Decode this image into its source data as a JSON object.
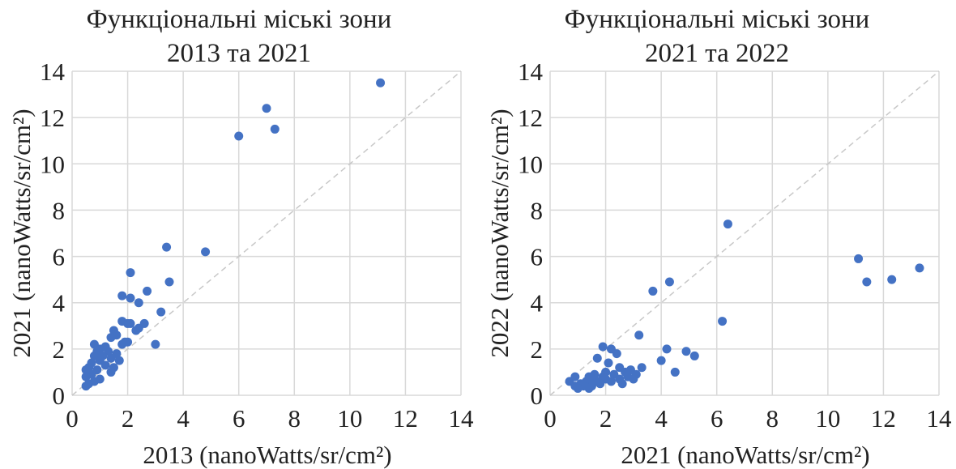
{
  "chart_data": [
    {
      "type": "scatter",
      "title_lines": [
        "Функціональні міські зони",
        "2013 та 2021"
      ],
      "xlabel": "2013 (nanoWatts/sr/cm²)",
      "ylabel": "2021 (nanoWatts/sr/cm²)",
      "xlim": [
        0,
        14
      ],
      "ylim": [
        0,
        14
      ],
      "xticks": [
        "0",
        "2",
        "4",
        "6",
        "8",
        "10",
        "12",
        "14"
      ],
      "yticks": [
        "0",
        "2",
        "4",
        "6",
        "8",
        "10",
        "12",
        "14"
      ],
      "grid": true,
      "reference_line": "y=x",
      "colors": {
        "points": "#4472c4",
        "grid": "#d9d9d9",
        "reference": "#c8c8c8"
      },
      "points": [
        [
          11.1,
          13.5
        ],
        [
          7.0,
          12.4
        ],
        [
          7.3,
          11.5
        ],
        [
          6.0,
          11.2
        ],
        [
          3.4,
          6.4
        ],
        [
          4.8,
          6.2
        ],
        [
          2.1,
          5.3
        ],
        [
          3.5,
          4.9
        ],
        [
          2.7,
          4.5
        ],
        [
          1.8,
          4.3
        ],
        [
          2.1,
          4.2
        ],
        [
          2.4,
          4.0
        ],
        [
          3.2,
          3.6
        ],
        [
          1.8,
          3.2
        ],
        [
          2.0,
          3.1
        ],
        [
          2.1,
          3.1
        ],
        [
          2.6,
          3.1
        ],
        [
          2.3,
          2.8
        ],
        [
          2.4,
          2.9
        ],
        [
          1.5,
          2.8
        ],
        [
          1.6,
          2.6
        ],
        [
          1.4,
          2.5
        ],
        [
          1.9,
          2.3
        ],
        [
          2.0,
          2.3
        ],
        [
          1.8,
          2.2
        ],
        [
          3.0,
          2.2
        ],
        [
          0.8,
          2.2
        ],
        [
          1.2,
          2.1
        ],
        [
          1.0,
          2.0
        ],
        [
          0.9,
          1.9
        ],
        [
          1.3,
          1.9
        ],
        [
          1.6,
          1.8
        ],
        [
          1.1,
          1.7
        ],
        [
          0.8,
          1.7
        ],
        [
          1.4,
          1.6
        ],
        [
          1.7,
          1.5
        ],
        [
          1.0,
          1.5
        ],
        [
          0.7,
          1.4
        ],
        [
          1.2,
          1.3
        ],
        [
          1.5,
          1.2
        ],
        [
          0.6,
          1.2
        ],
        [
          0.9,
          1.1
        ],
        [
          0.5,
          1.1
        ],
        [
          1.4,
          1.0
        ],
        [
          0.7,
          0.9
        ],
        [
          0.5,
          0.8
        ],
        [
          1.0,
          0.7
        ],
        [
          0.8,
          0.6
        ],
        [
          0.6,
          0.5
        ],
        [
          0.5,
          0.4
        ]
      ]
    },
    {
      "type": "scatter",
      "title_lines": [
        "Функціональні міські зони",
        "2021 та 2022"
      ],
      "xlabel": "2021 (nanoWatts/sr/cm²)",
      "ylabel": "2022 (nanoWatts/sr/cm²)",
      "xlim": [
        0,
        14
      ],
      "ylim": [
        0,
        14
      ],
      "xticks": [
        "0",
        "2",
        "4",
        "6",
        "8",
        "10",
        "12",
        "14"
      ],
      "yticks": [
        "0",
        "2",
        "4",
        "6",
        "8",
        "10",
        "12",
        "14"
      ],
      "grid": true,
      "reference_line": "y=x",
      "colors": {
        "points": "#4472c4",
        "grid": "#d9d9d9",
        "reference": "#c8c8c8"
      },
      "points": [
        [
          6.4,
          7.4
        ],
        [
          11.1,
          5.9
        ],
        [
          13.3,
          5.5
        ],
        [
          12.3,
          5.0
        ],
        [
          11.4,
          4.9
        ],
        [
          4.3,
          4.9
        ],
        [
          3.7,
          4.5
        ],
        [
          6.2,
          3.2
        ],
        [
          3.2,
          2.6
        ],
        [
          1.9,
          2.1
        ],
        [
          2.2,
          2.0
        ],
        [
          4.2,
          2.0
        ],
        [
          4.9,
          1.9
        ],
        [
          2.4,
          1.8
        ],
        [
          5.2,
          1.7
        ],
        [
          1.7,
          1.6
        ],
        [
          4.0,
          1.5
        ],
        [
          2.1,
          1.4
        ],
        [
          3.3,
          1.2
        ],
        [
          2.5,
          1.2
        ],
        [
          2.9,
          1.1
        ],
        [
          2.7,
          1.0
        ],
        [
          4.5,
          1.0
        ],
        [
          2.0,
          1.0
        ],
        [
          1.6,
          0.9
        ],
        [
          3.1,
          0.9
        ],
        [
          2.3,
          0.9
        ],
        [
          1.4,
          0.8
        ],
        [
          2.8,
          0.8
        ],
        [
          1.9,
          0.8
        ],
        [
          0.9,
          0.8
        ],
        [
          2.5,
          0.7
        ],
        [
          2.0,
          0.7
        ],
        [
          1.5,
          0.7
        ],
        [
          3.0,
          0.7
        ],
        [
          1.7,
          0.6
        ],
        [
          2.2,
          0.6
        ],
        [
          0.7,
          0.6
        ],
        [
          1.3,
          0.6
        ],
        [
          1.8,
          0.5
        ],
        [
          2.6,
          0.5
        ],
        [
          1.1,
          0.5
        ],
        [
          1.5,
          0.4
        ],
        [
          1.2,
          0.4
        ],
        [
          0.9,
          0.4
        ],
        [
          1.4,
          0.3
        ],
        [
          1.0,
          0.3
        ]
      ]
    }
  ]
}
